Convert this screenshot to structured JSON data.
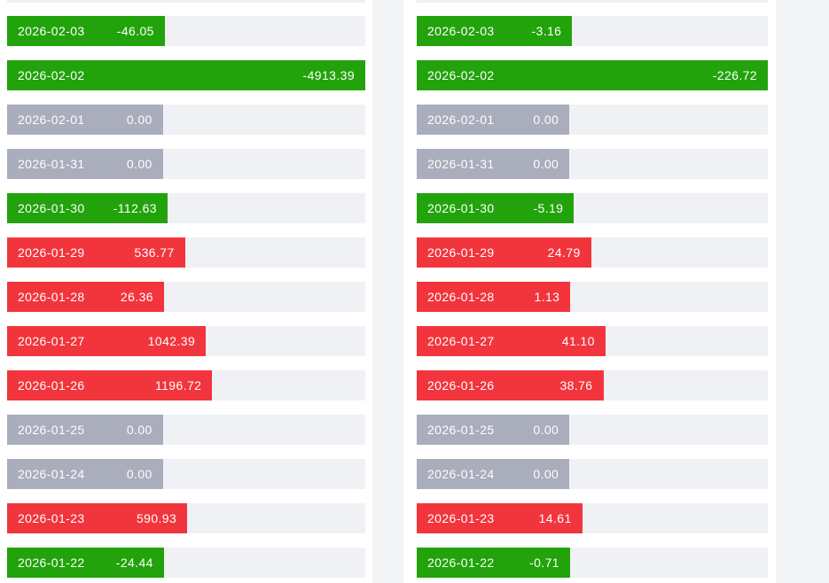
{
  "colors": {
    "negative_green": "#22a30c",
    "positive_red": "#f2353d",
    "zero_gray": "#a9adbc",
    "track": "#f0f1f5",
    "card_bg": "#ffffff",
    "page_bg": "#f4f5f7",
    "bar_text": "#ffffff"
  },
  "chart_data": [
    {
      "type": "bar",
      "orientation": "horizontal",
      "panel": "left",
      "title": "",
      "min_bar_pct": 43.5,
      "max_abs": 4913.39,
      "color_rule": "value<0 green, value>0 red, value=0 gray",
      "rows": [
        {
          "date": "2026-02-03",
          "value": -46.05,
          "label": "-46.05"
        },
        {
          "date": "2026-02-02",
          "value": -4913.39,
          "label": "-4913.39"
        },
        {
          "date": "2026-02-01",
          "value": 0,
          "label": "0.00"
        },
        {
          "date": "2026-01-31",
          "value": 0,
          "label": "0.00"
        },
        {
          "date": "2026-01-30",
          "value": -112.63,
          "label": "-112.63"
        },
        {
          "date": "2026-01-29",
          "value": 536.77,
          "label": "536.77"
        },
        {
          "date": "2026-01-28",
          "value": 26.36,
          "label": "26.36"
        },
        {
          "date": "2026-01-27",
          "value": 1042.39,
          "label": "1042.39"
        },
        {
          "date": "2026-01-26",
          "value": 1196.72,
          "label": "1196.72"
        },
        {
          "date": "2026-01-25",
          "value": 0,
          "label": "0.00"
        },
        {
          "date": "2026-01-24",
          "value": 0,
          "label": "0.00"
        },
        {
          "date": "2026-01-23",
          "value": 590.93,
          "label": "590.93"
        },
        {
          "date": "2026-01-22",
          "value": -24.44,
          "label": "-24.44"
        }
      ]
    },
    {
      "type": "bar",
      "orientation": "horizontal",
      "panel": "right",
      "title": "",
      "min_bar_pct": 43.5,
      "max_abs": 226.72,
      "color_rule": "value<0 green, value>0 red, value=0 gray",
      "rows": [
        {
          "date": "2026-02-03",
          "value": -3.16,
          "label": "-3.16"
        },
        {
          "date": "2026-02-02",
          "value": -226.72,
          "label": "-226.72"
        },
        {
          "date": "2026-02-01",
          "value": 0,
          "label": "0.00"
        },
        {
          "date": "2026-01-31",
          "value": 0,
          "label": "0.00"
        },
        {
          "date": "2026-01-30",
          "value": -5.19,
          "label": "-5.19"
        },
        {
          "date": "2026-01-29",
          "value": 24.79,
          "label": "24.79"
        },
        {
          "date": "2026-01-28",
          "value": 1.13,
          "label": "1.13"
        },
        {
          "date": "2026-01-27",
          "value": 41.1,
          "label": "41.10"
        },
        {
          "date": "2026-01-26",
          "value": 38.76,
          "label": "38.76"
        },
        {
          "date": "2026-01-25",
          "value": 0,
          "label": "0.00"
        },
        {
          "date": "2026-01-24",
          "value": 0,
          "label": "0.00"
        },
        {
          "date": "2026-01-23",
          "value": 14.61,
          "label": "14.61"
        },
        {
          "date": "2026-01-22",
          "value": -0.71,
          "label": "-0.71"
        }
      ]
    }
  ]
}
